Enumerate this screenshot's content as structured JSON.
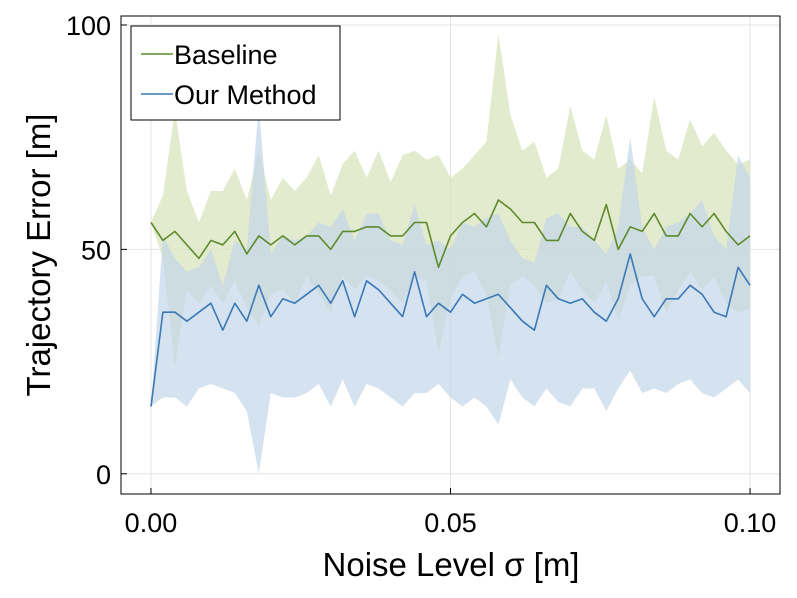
{
  "chart_data": {
    "type": "line",
    "title": "",
    "xlabel": "Noise Level σ [m]",
    "ylabel": "Trajectory Error [m]",
    "xlim": [
      -0.005,
      0.105
    ],
    "ylim": [
      -4.5,
      102
    ],
    "xticks": [
      0.0,
      0.05,
      0.1
    ],
    "xtick_labels": [
      "0.00",
      "0.05",
      "0.10"
    ],
    "yticks": [
      0,
      50,
      100
    ],
    "ytick_labels": [
      "0",
      "50",
      "100"
    ],
    "grid": true,
    "legend_position": "top-left",
    "x": [
      0.0,
      0.002,
      0.004,
      0.006,
      0.008,
      0.01,
      0.012,
      0.014,
      0.016,
      0.018,
      0.02,
      0.022,
      0.024,
      0.026,
      0.028,
      0.03,
      0.032,
      0.034,
      0.036,
      0.038,
      0.04,
      0.042,
      0.044,
      0.046,
      0.048,
      0.05,
      0.052,
      0.054,
      0.056,
      0.058,
      0.06,
      0.062,
      0.064,
      0.066,
      0.068,
      0.07,
      0.072,
      0.074,
      0.076,
      0.078,
      0.08,
      0.082,
      0.084,
      0.086,
      0.088,
      0.09,
      0.092,
      0.094,
      0.096,
      0.098,
      0.1
    ],
    "series": [
      {
        "name": "Baseline",
        "color": "#5e8a2c",
        "band_color": "#d7e2b9",
        "values": [
          56,
          52,
          54,
          51,
          48,
          52,
          51,
          54,
          49,
          53,
          51,
          53,
          51,
          53,
          53,
          50,
          54,
          54,
          55,
          55,
          53,
          53,
          56,
          56,
          46,
          53,
          56,
          58,
          55,
          61,
          59,
          56,
          56,
          52,
          52,
          58,
          54,
          52,
          60,
          50,
          55,
          54,
          58,
          53,
          53,
          58,
          55,
          58,
          54,
          51,
          53
        ],
        "upper": [
          56,
          62,
          81,
          63,
          56,
          63,
          63,
          68,
          61,
          72,
          61,
          66,
          63,
          66,
          71,
          62,
          69,
          72,
          66,
          72,
          65,
          71,
          72,
          70,
          71,
          66,
          68,
          71,
          74,
          98,
          80,
          72,
          74,
          66,
          68,
          82,
          72,
          70,
          80,
          68,
          70,
          67,
          84,
          72,
          70,
          79,
          73,
          76,
          72,
          69,
          70
        ],
        "lower": [
          56,
          48,
          24,
          41,
          38,
          42,
          38,
          43,
          37,
          33,
          40,
          41,
          38,
          44,
          40,
          36,
          44,
          41,
          44,
          43,
          41,
          38,
          44,
          43,
          27,
          39,
          44,
          45,
          40,
          26,
          42,
          44,
          42,
          38,
          39,
          45,
          41,
          38,
          43,
          34,
          42,
          44,
          44,
          36,
          41,
          45,
          41,
          44,
          38,
          36,
          37
        ]
      },
      {
        "name": "Our Method",
        "color": "#3b79b6",
        "band_color": "#c3d6ea",
        "values": [
          15,
          36,
          36,
          34,
          36,
          38,
          32,
          38,
          34,
          42,
          35,
          39,
          38,
          40,
          42,
          38,
          43,
          35,
          43,
          41,
          38,
          35,
          45,
          35,
          38,
          36,
          40,
          38,
          39,
          40,
          37,
          34,
          32,
          42,
          39,
          38,
          39,
          36,
          34,
          39,
          49,
          39,
          35,
          39,
          39,
          42,
          40,
          36,
          35,
          46,
          42
        ],
        "upper": [
          15,
          53,
          48,
          45,
          46,
          50,
          42,
          52,
          50,
          82,
          49,
          53,
          52,
          53,
          56,
          55,
          59,
          52,
          58,
          58,
          52,
          51,
          60,
          51,
          52,
          50,
          56,
          55,
          57,
          58,
          52,
          48,
          47,
          57,
          58,
          55,
          55,
          52,
          49,
          55,
          75,
          55,
          50,
          55,
          56,
          58,
          61,
          53,
          50,
          71,
          66
        ],
        "lower": [
          15,
          17,
          17,
          15,
          19,
          20,
          19,
          18,
          14,
          0,
          18,
          17,
          17,
          18,
          20,
          15,
          21,
          15,
          20,
          19,
          17,
          15,
          18,
          18,
          20,
          17,
          15,
          17,
          15,
          11,
          21,
          17,
          15,
          19,
          16,
          15,
          19,
          19,
          14,
          19,
          23,
          18,
          19,
          18,
          20,
          21,
          18,
          17,
          19,
          21,
          18
        ]
      }
    ]
  }
}
